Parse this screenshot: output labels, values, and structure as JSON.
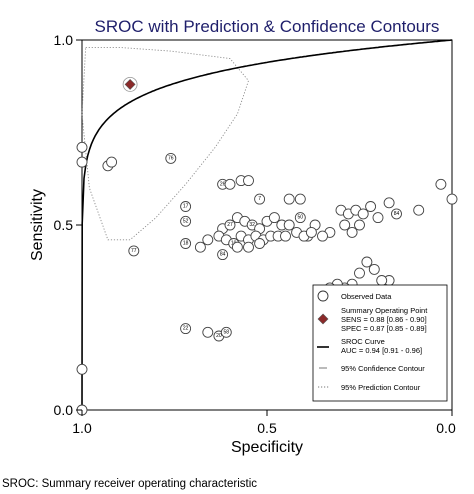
{
  "chart_data": {
    "type": "scatter",
    "title": "SROC with Prediction & Confidence Contours",
    "xlabel": "Specificity",
    "ylabel": "Sensitivity",
    "xlim": [
      1.0,
      0.0
    ],
    "ylim": [
      0.0,
      1.0
    ],
    "x_ticks": [
      "1.0",
      "0.5",
      "0.0"
    ],
    "y_ticks": [
      "0.0",
      "0.5",
      "1.0"
    ],
    "x_reversed": true,
    "grid": false,
    "legend_position": "bottom-right",
    "legend": {
      "observed": "Observed Data",
      "summary": "Summary Operating Point",
      "sens": "SENS = 0.88 [0.86 - 0.90]",
      "spec": "SPEC = 0.87 [0.85 - 0.89]",
      "curve": "SROC Curve",
      "auc": "AUC = 0.94 [0.91 - 0.96]",
      "confidence": "95% Confidence Contour",
      "prediction": "95% Prediction Contour"
    },
    "summary_point": {
      "specificity": 0.87,
      "sensitivity": 0.88
    },
    "observed": [
      {
        "spec": 1.0,
        "sens": 0.71,
        "label": ""
      },
      {
        "spec": 1.0,
        "sens": 0.67,
        "label": ""
      },
      {
        "spec": 1.0,
        "sens": 0.11,
        "label": ""
      },
      {
        "spec": 1.0,
        "sens": 0.0,
        "label": ""
      },
      {
        "spec": 0.93,
        "sens": 0.66,
        "label": ""
      },
      {
        "spec": 0.92,
        "sens": 0.67,
        "label": ""
      },
      {
        "spec": 0.86,
        "sens": 0.43,
        "label": "77"
      },
      {
        "spec": 0.76,
        "sens": 0.68,
        "label": "76"
      },
      {
        "spec": 0.72,
        "sens": 0.55,
        "label": "17"
      },
      {
        "spec": 0.72,
        "sens": 0.51,
        "label": "52"
      },
      {
        "spec": 0.72,
        "sens": 0.45,
        "label": "18"
      },
      {
        "spec": 0.68,
        "sens": 0.44,
        "label": ""
      },
      {
        "spec": 0.66,
        "sens": 0.46,
        "label": ""
      },
      {
        "spec": 0.62,
        "sens": 0.61,
        "label": "26"
      },
      {
        "spec": 0.6,
        "sens": 0.61,
        "label": ""
      },
      {
        "spec": 0.57,
        "sens": 0.62,
        "label": ""
      },
      {
        "spec": 0.55,
        "sens": 0.62,
        "label": ""
      },
      {
        "spec": 0.52,
        "sens": 0.57,
        "label": "7"
      },
      {
        "spec": 0.62,
        "sens": 0.49,
        "label": ""
      },
      {
        "spec": 0.6,
        "sens": 0.5,
        "label": "27"
      },
      {
        "spec": 0.58,
        "sens": 0.52,
        "label": ""
      },
      {
        "spec": 0.56,
        "sens": 0.51,
        "label": ""
      },
      {
        "spec": 0.54,
        "sens": 0.5,
        "label": "32"
      },
      {
        "spec": 0.52,
        "sens": 0.49,
        "label": ""
      },
      {
        "spec": 0.5,
        "sens": 0.51,
        "label": ""
      },
      {
        "spec": 0.48,
        "sens": 0.52,
        "label": ""
      },
      {
        "spec": 0.46,
        "sens": 0.5,
        "label": ""
      },
      {
        "spec": 0.44,
        "sens": 0.5,
        "label": ""
      },
      {
        "spec": 0.63,
        "sens": 0.47,
        "label": ""
      },
      {
        "spec": 0.61,
        "sens": 0.46,
        "label": ""
      },
      {
        "spec": 0.59,
        "sens": 0.45,
        "label": "10"
      },
      {
        "spec": 0.57,
        "sens": 0.47,
        "label": ""
      },
      {
        "spec": 0.55,
        "sens": 0.46,
        "label": ""
      },
      {
        "spec": 0.53,
        "sens": 0.47,
        "label": ""
      },
      {
        "spec": 0.51,
        "sens": 0.46,
        "label": ""
      },
      {
        "spec": 0.49,
        "sens": 0.47,
        "label": ""
      },
      {
        "spec": 0.47,
        "sens": 0.47,
        "label": ""
      },
      {
        "spec": 0.45,
        "sens": 0.47,
        "label": ""
      },
      {
        "spec": 0.62,
        "sens": 0.42,
        "label": "84"
      },
      {
        "spec": 0.58,
        "sens": 0.44,
        "label": ""
      },
      {
        "spec": 0.55,
        "sens": 0.44,
        "label": ""
      },
      {
        "spec": 0.52,
        "sens": 0.45,
        "label": ""
      },
      {
        "spec": 0.42,
        "sens": 0.48,
        "label": ""
      },
      {
        "spec": 0.39,
        "sens": 0.47,
        "label": ""
      },
      {
        "spec": 0.44,
        "sens": 0.57,
        "label": ""
      },
      {
        "spec": 0.41,
        "sens": 0.57,
        "label": ""
      },
      {
        "spec": 0.41,
        "sens": 0.52,
        "label": "50"
      },
      {
        "spec": 0.3,
        "sens": 0.54,
        "label": ""
      },
      {
        "spec": 0.28,
        "sens": 0.53,
        "label": ""
      },
      {
        "spec": 0.26,
        "sens": 0.54,
        "label": ""
      },
      {
        "spec": 0.24,
        "sens": 0.53,
        "label": ""
      },
      {
        "spec": 0.22,
        "sens": 0.55,
        "label": ""
      },
      {
        "spec": 0.2,
        "sens": 0.52,
        "label": ""
      },
      {
        "spec": 0.17,
        "sens": 0.56,
        "label": ""
      },
      {
        "spec": 0.15,
        "sens": 0.53,
        "label": "84"
      },
      {
        "spec": 0.09,
        "sens": 0.54,
        "label": ""
      },
      {
        "spec": 0.03,
        "sens": 0.61,
        "label": ""
      },
      {
        "spec": 0.0,
        "sens": 0.57,
        "label": ""
      },
      {
        "spec": 0.37,
        "sens": 0.5,
        "label": ""
      },
      {
        "spec": 0.33,
        "sens": 0.48,
        "label": ""
      },
      {
        "spec": 0.29,
        "sens": 0.5,
        "label": ""
      },
      {
        "spec": 0.27,
        "sens": 0.48,
        "label": ""
      },
      {
        "spec": 0.25,
        "sens": 0.5,
        "label": ""
      },
      {
        "spec": 0.4,
        "sens": 0.47,
        "label": ""
      },
      {
        "spec": 0.38,
        "sens": 0.48,
        "label": ""
      },
      {
        "spec": 0.35,
        "sens": 0.47,
        "label": ""
      },
      {
        "spec": 0.23,
        "sens": 0.4,
        "label": ""
      },
      {
        "spec": 0.21,
        "sens": 0.38,
        "label": ""
      },
      {
        "spec": 0.25,
        "sens": 0.37,
        "label": ""
      },
      {
        "spec": 0.27,
        "sens": 0.34,
        "label": ""
      },
      {
        "spec": 0.29,
        "sens": 0.33,
        "label": ""
      },
      {
        "spec": 0.31,
        "sens": 0.34,
        "label": ""
      },
      {
        "spec": 0.17,
        "sens": 0.35,
        "label": ""
      },
      {
        "spec": 0.19,
        "sens": 0.35,
        "label": ""
      },
      {
        "spec": 0.33,
        "sens": 0.33,
        "label": ""
      },
      {
        "spec": 0.36,
        "sens": 0.32,
        "label": ""
      },
      {
        "spec": 0.26,
        "sens": 0.31,
        "label": ""
      },
      {
        "spec": 0.23,
        "sens": 0.31,
        "label": ""
      },
      {
        "spec": 0.72,
        "sens": 0.22,
        "label": "22"
      },
      {
        "spec": 0.66,
        "sens": 0.21,
        "label": ""
      },
      {
        "spec": 0.63,
        "sens": 0.2,
        "label": "20"
      },
      {
        "spec": 0.61,
        "sens": 0.21,
        "label": "58"
      }
    ]
  },
  "caption": "SROC: Summary receiver operating characteristic"
}
